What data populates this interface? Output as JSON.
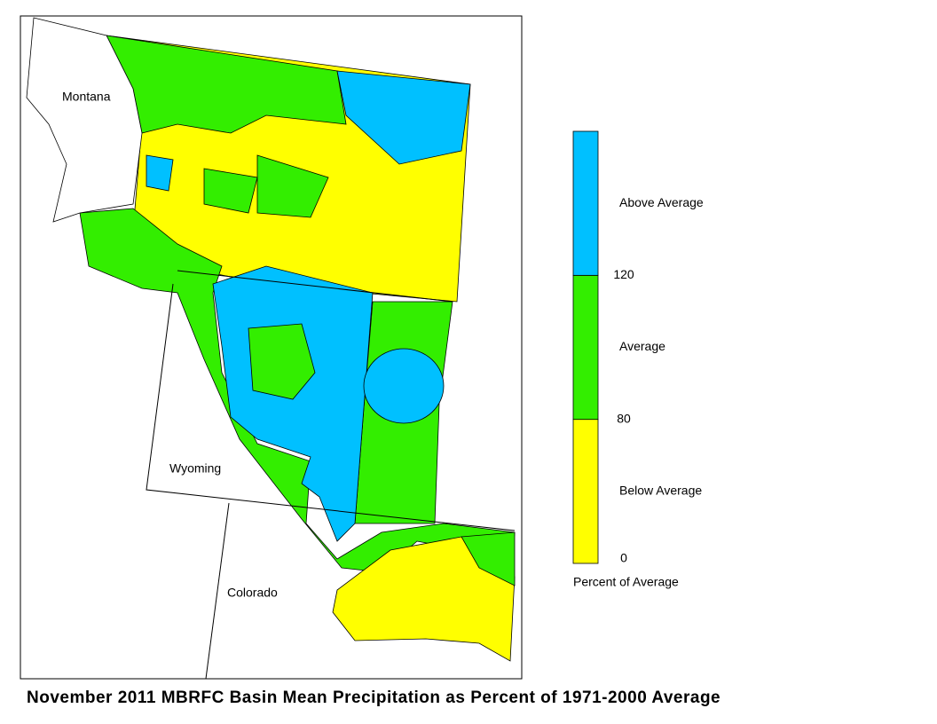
{
  "map": {
    "title": "November 2011 MBRFC Basin Mean Precipitation as Percent of 1971-2000 Average",
    "state_labels": [
      "Montana",
      "Wyoming",
      "Colorado"
    ]
  },
  "legend": {
    "title": "Percent of Average",
    "classes": [
      {
        "label": "Below Average",
        "color": "#ffff00"
      },
      {
        "label": "Average",
        "color": "#33ee00"
      },
      {
        "label": "Above Average",
        "color": "#00c0ff"
      }
    ],
    "ticks": [
      0,
      80,
      120
    ]
  }
}
